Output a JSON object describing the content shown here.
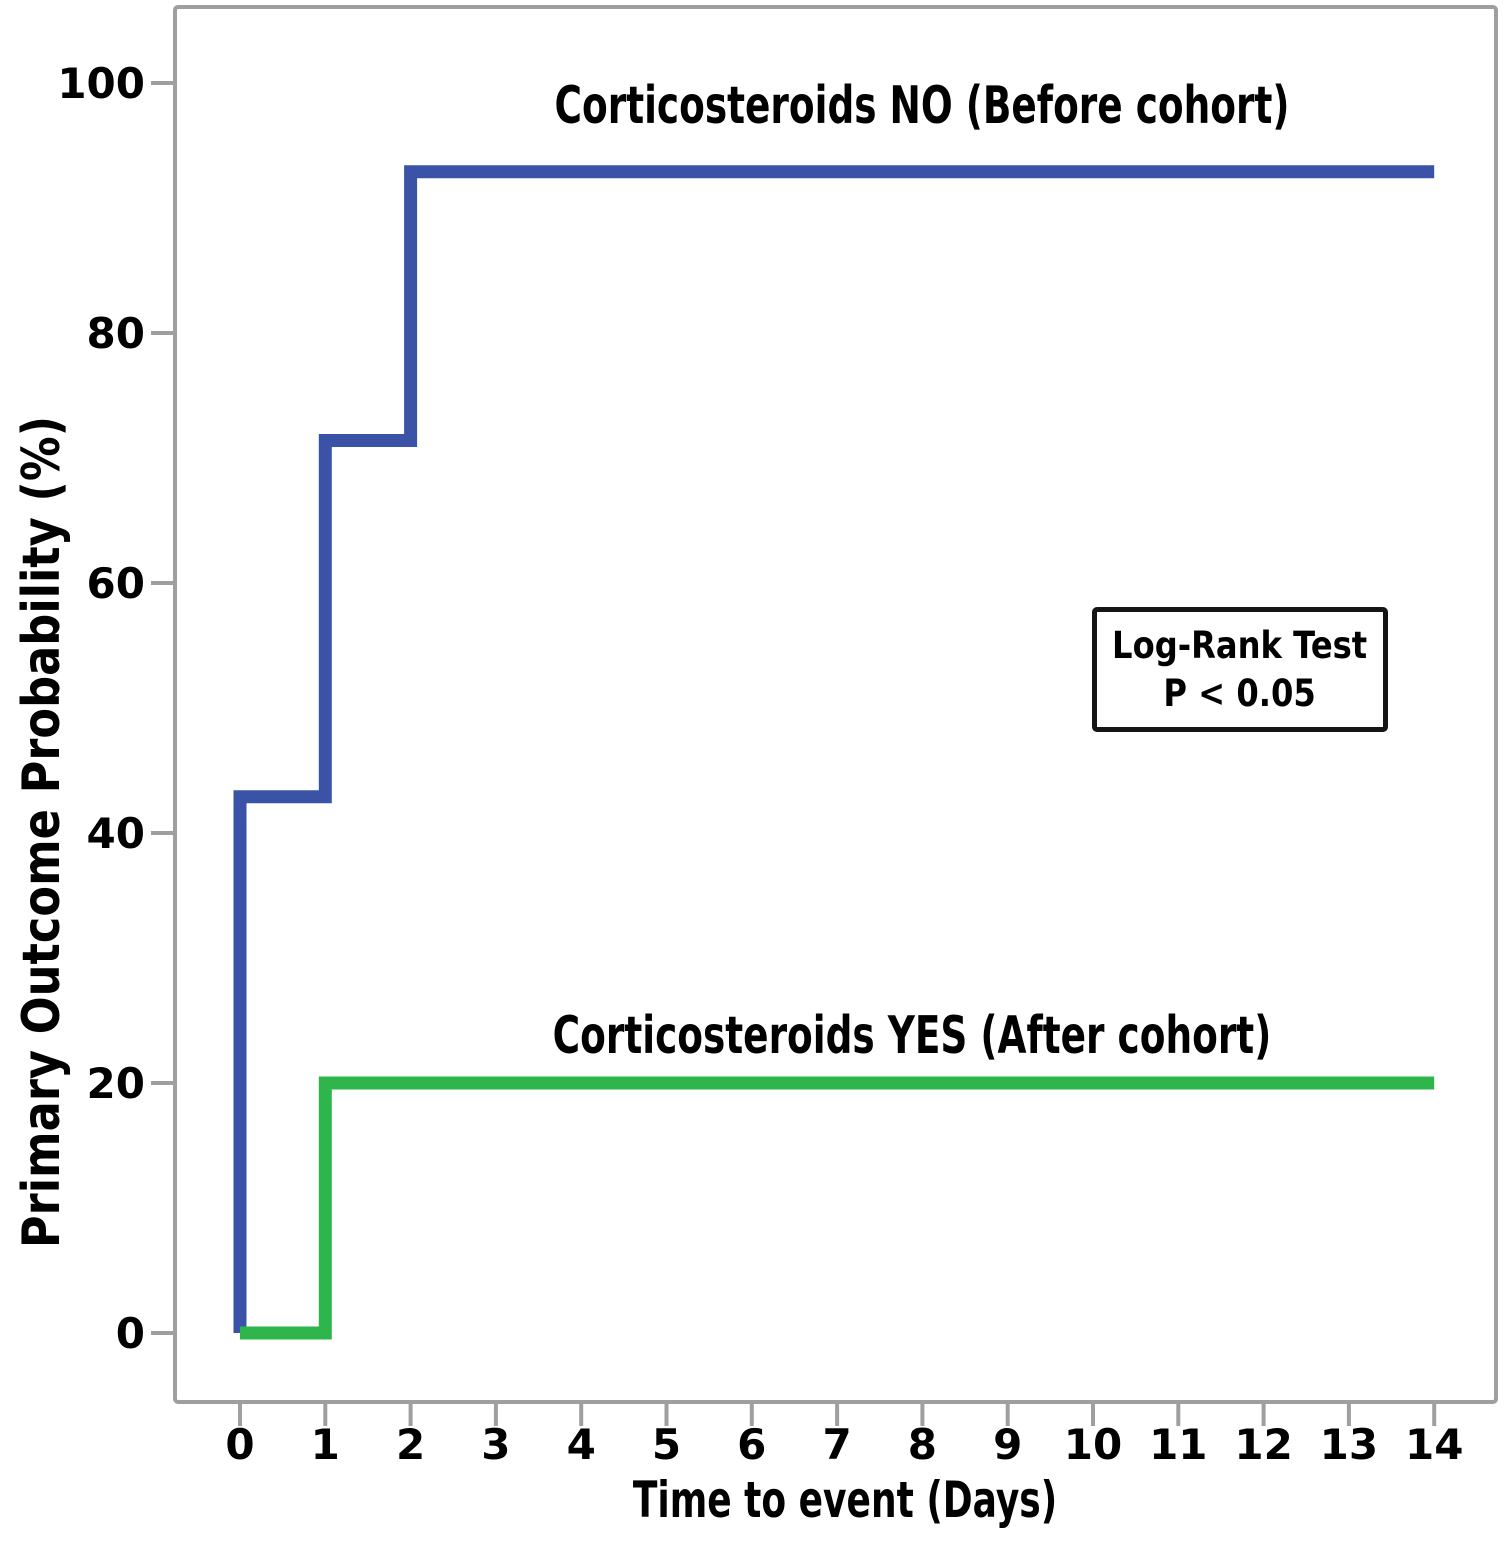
{
  "figure": {
    "background_color": "#ffffff",
    "frame_color": "#9f9f9f",
    "text_color": "#000000"
  },
  "chart_data": {
    "type": "line",
    "variant": "kaplan_meier_step",
    "title": "",
    "xlabel": "Time to event  (Days)",
    "ylabel": "Primary Outcome Probability (%)",
    "x_ticks": [
      0,
      1,
      2,
      3,
      4,
      5,
      6,
      7,
      8,
      9,
      10,
      11,
      12,
      13,
      14
    ],
    "y_ticks": [
      0,
      20,
      40,
      60,
      80,
      100
    ],
    "xlim": [
      0,
      14
    ],
    "ylim": [
      0,
      100
    ],
    "grid": false,
    "legend": "inline-labels-above-curves",
    "series": [
      {
        "name": "Corticosteroids NO (Before cohort)",
        "color": "#3a53a6",
        "steps_day_pct": [
          [
            0,
            0
          ],
          [
            0,
            42.9
          ],
          [
            1,
            42.9
          ],
          [
            1,
            71.4
          ],
          [
            2,
            71.4
          ],
          [
            2,
            92.9
          ],
          [
            14,
            92.9
          ]
        ]
      },
      {
        "name": "Corticosteroids YES (After cohort)",
        "color": "#2eb64c",
        "steps_day_pct": [
          [
            0,
            0
          ],
          [
            1,
            0
          ],
          [
            1,
            20
          ],
          [
            14,
            20
          ]
        ]
      }
    ],
    "annotation_box": {
      "line1": "Log-Rank Test",
      "line2": "P < 0.05"
    }
  }
}
